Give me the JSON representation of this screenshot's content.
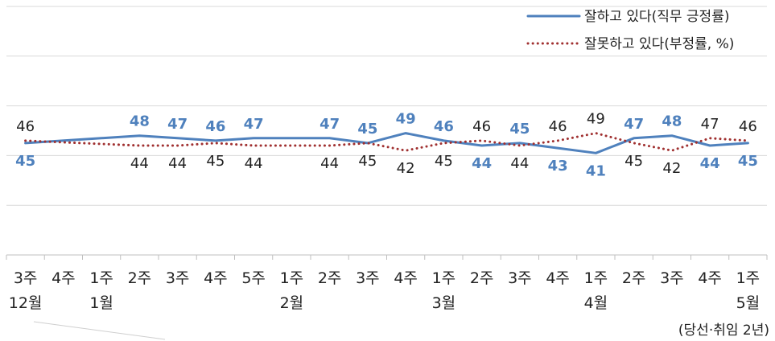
{
  "chart_data": {
    "type": "line",
    "categories": [
      "3주",
      "4주",
      "1주",
      "2주",
      "3주",
      "4주",
      "5주",
      "1주",
      "2주",
      "3주",
      "4주",
      "1주",
      "2주",
      "3주",
      "4주",
      "1주",
      "2주",
      "3주",
      "4주",
      "1주"
    ],
    "months": [
      {
        "index": 0,
        "label": "12월"
      },
      {
        "index": 2,
        "label": "1월"
      },
      {
        "index": 7,
        "label": "2월"
      },
      {
        "index": 11,
        "label": "3월"
      },
      {
        "index": 15,
        "label": "4월"
      },
      {
        "index": 19,
        "label": "5월"
      }
    ],
    "series": [
      {
        "name": "잘하고 있다(직무 긍정률)",
        "color": "#4f81bd",
        "style": "solid",
        "values": [
          45,
          null,
          null,
          48,
          47,
          46,
          47,
          null,
          47,
          45,
          49,
          46,
          44,
          45,
          43,
          41,
          47,
          48,
          44,
          45
        ],
        "labels": [
          "45",
          "",
          "",
          "48",
          "47",
          "46",
          "47",
          "",
          "47",
          "45",
          "49",
          "46",
          "44",
          "45",
          "43",
          "41",
          "47",
          "48",
          "44",
          "45"
        ]
      },
      {
        "name": "잘못하고 있다(부정률, %)",
        "color": "#a03030",
        "style": "dotted",
        "values": [
          46,
          null,
          null,
          44,
          44,
          45,
          44,
          null,
          44,
          45,
          42,
          45,
          46,
          44,
          46,
          49,
          45,
          42,
          47,
          46
        ],
        "labels": [
          "46",
          "",
          "",
          "44",
          "44",
          "45",
          "44",
          "",
          "44",
          "45",
          "42",
          "45",
          "46",
          "44",
          "46",
          "49",
          "45",
          "42",
          "47",
          "46"
        ]
      }
    ],
    "ylim": [
      0,
      100
    ],
    "grid": true,
    "legend_position": "top-right",
    "note": "(당선·취임 2년)"
  }
}
